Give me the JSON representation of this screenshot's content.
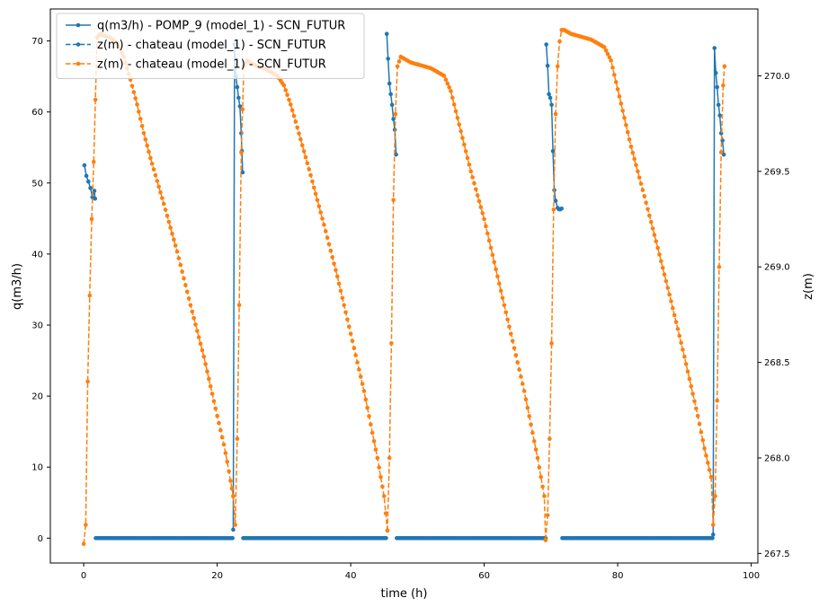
{
  "chart_data": {
    "type": "line",
    "xlabel": "time (h)",
    "ylabel_left": "q(m3/h)",
    "ylabel_right": "z(m)",
    "xlim": [
      -5,
      101
    ],
    "ylim_left": [
      -3.5,
      74.5
    ],
    "ylim_right": [
      267.45,
      270.35
    ],
    "xticks": [
      0,
      20,
      40,
      60,
      80,
      100
    ],
    "yticks_left": [
      0,
      10,
      20,
      30,
      40,
      50,
      60,
      70
    ],
    "yticks_right": [
      267.5,
      268.0,
      268.5,
      269.0,
      269.5,
      270.0
    ],
    "ytick_labels_right": [
      "267.5",
      "268.0",
      "268.5",
      "269.0",
      "269.5",
      "270.0"
    ],
    "legend_position": "upper-left",
    "grid": false,
    "series": [
      {
        "name": "q(m3/h) - POMP_9 (model_1) - SCN_FUTUR",
        "axis": "left",
        "color": "#1f77b4",
        "dash": "solid",
        "segments": [
          {
            "x": [
              0.1,
              0.4,
              0.7,
              1.0,
              1.3,
              1.6,
              1.7
            ],
            "y": [
              52.5,
              51,
              50.2,
              49.3,
              48,
              48.9,
              47.8
            ]
          },
          {
            "x": [
              1.8,
              22.3
            ],
            "y": [
              0,
              0
            ]
          },
          {
            "x": [
              22.4,
              22.6,
              22.8,
              23.0,
              23.2,
              23.4,
              23.6,
              23.7,
              23.8
            ],
            "y": [
              1.2,
              69.5,
              65,
              63.5,
              62,
              60.8,
              57,
              54.5,
              51.5
            ]
          },
          {
            "x": [
              23.9,
              45.3
            ],
            "y": [
              0,
              0
            ]
          },
          {
            "x": [
              45.4,
              45.6,
              45.8,
              46.0,
              46.2,
              46.4,
              46.6,
              46.8
            ],
            "y": [
              71,
              67.5,
              64,
              62.5,
              61,
              59,
              57.5,
              54
            ]
          },
          {
            "x": [
              46.9,
              69.2
            ],
            "y": [
              0,
              0
            ]
          },
          {
            "x": [
              69.3,
              69.5,
              69.7,
              69.9,
              70.1,
              70.3,
              70.5,
              70.7,
              71.0,
              71.2,
              71.4,
              71.6
            ],
            "y": [
              69.5,
              66.5,
              62.5,
              62,
              61,
              54.5,
              49,
              47.5,
              46.5,
              46.3,
              46.3,
              46.4
            ]
          },
          {
            "x": [
              71.7,
              94.2
            ],
            "y": [
              0,
              0
            ]
          },
          {
            "x": [
              94.3,
              94.5,
              94.7,
              94.9,
              95.1,
              95.3,
              95.5,
              95.7,
              95.9
            ],
            "y": [
              0.5,
              69,
              65.5,
              63.5,
              61,
              59.5,
              57,
              56,
              54
            ]
          }
        ]
      },
      {
        "name": "z(m) - chateau (model_1) - SCN_FUTUR",
        "axis": "right",
        "color": "#1f77b4",
        "dash": "dashed",
        "segments": []
      },
      {
        "name": "z(m) - chateau (model_1) - SCN_FUTUR",
        "axis": "right",
        "color": "#ff7f0e",
        "dash": "dashed",
        "segments": [
          {
            "x": [
              0,
              0.3,
              0.6,
              0.9,
              1.2,
              1.5,
              2.0,
              2.5,
              3,
              4,
              5,
              6,
              7,
              8,
              9,
              10,
              12,
              14,
              16,
              18,
              20,
              21,
              21.5,
              22,
              22.4
            ],
            "y": [
              267.55,
              267.65,
              268.4,
              268.85,
              269.25,
              269.55,
              270.2,
              270.22,
              270.21,
              270.2,
              270.17,
              270.1,
              269.98,
              269.85,
              269.7,
              269.57,
              269.33,
              269.08,
              268.8,
              268.53,
              268.22,
              268.07,
              267.98,
              267.88,
              267.8
            ]
          },
          {
            "x": [
              22.4,
              22.7,
              23.0,
              23.3,
              23.6,
              24.0,
              24.5,
              25,
              26,
              27,
              28,
              29,
              30,
              31,
              32,
              34,
              36,
              38,
              40,
              42,
              44,
              45,
              45.5
            ],
            "y": [
              267.8,
              267.65,
              268.1,
              268.8,
              269.6,
              270.05,
              270.08,
              270.07,
              270.05,
              270.04,
              270.02,
              270.0,
              269.95,
              269.85,
              269.73,
              269.48,
              269.22,
              268.95,
              268.65,
              268.35,
              268.0,
              267.8,
              267.62
            ]
          },
          {
            "x": [
              45.5,
              45.8,
              46.1,
              46.4,
              46.7,
              47.0,
              47.5,
              48,
              49,
              50,
              51,
              52,
              53,
              54,
              55,
              56,
              58,
              60,
              62,
              64,
              66,
              68,
              69,
              69.2
            ],
            "y": [
              267.62,
              268.0,
              268.6,
              269.35,
              269.8,
              270.05,
              270.1,
              270.09,
              270.07,
              270.06,
              270.05,
              270.04,
              270.02,
              270.0,
              269.92,
              269.78,
              269.5,
              269.25,
              268.95,
              268.65,
              268.35,
              268.0,
              267.8,
              267.57
            ]
          },
          {
            "x": [
              69.2,
              69.5,
              69.8,
              70.1,
              70.4,
              70.7,
              71.0,
              71.3,
              71.6,
              72.0,
              73,
              74,
              75,
              76,
              77,
              78,
              79,
              80,
              82,
              84,
              86,
              88,
              90,
              92,
              93,
              94
            ],
            "y": [
              267.57,
              267.7,
              268.1,
              268.6,
              269.3,
              269.8,
              270.05,
              270.18,
              270.24,
              270.24,
              270.22,
              270.21,
              270.2,
              270.19,
              270.17,
              270.15,
              270.08,
              269.93,
              269.63,
              269.37,
              269.1,
              268.82,
              268.53,
              268.22,
              268.05,
              267.9
            ]
          },
          {
            "x": [
              94.0,
              94.3,
              94.6,
              94.9,
              95.2,
              95.5,
              95.8,
              96.0
            ],
            "y": [
              267.9,
              267.65,
              267.8,
              268.3,
              269.0,
              269.6,
              269.95,
              270.05
            ]
          }
        ]
      }
    ]
  }
}
